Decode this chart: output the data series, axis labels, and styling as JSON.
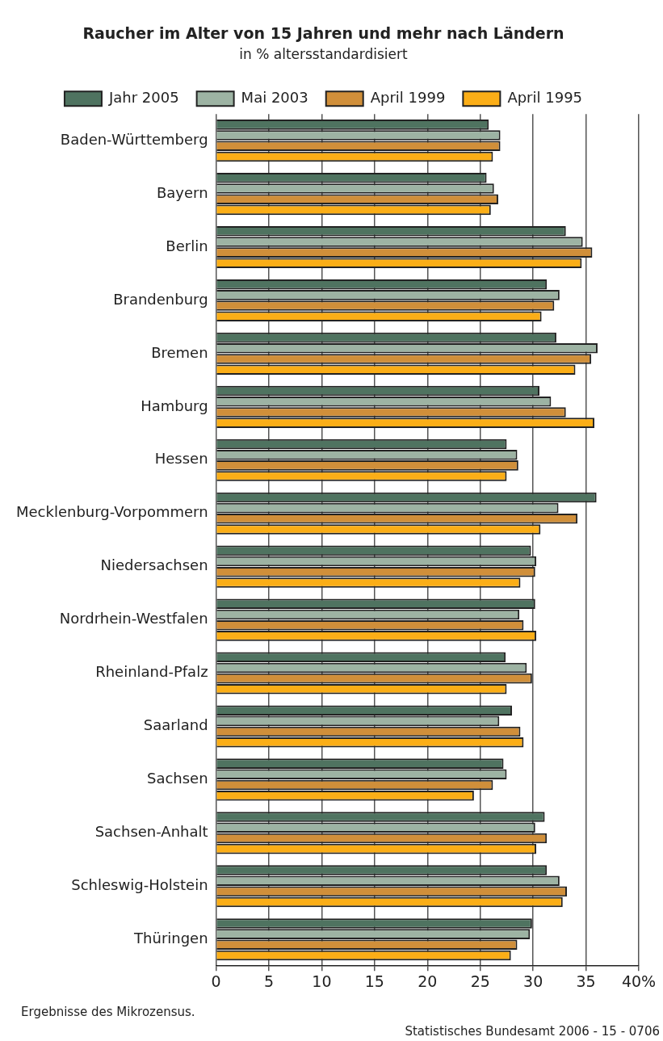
{
  "chart_data": {
    "type": "bar",
    "orientation": "horizontal",
    "title": "Raucher im Alter von 15 Jahren und mehr nach Ländern",
    "subtitle": "in % altersstandardisiert",
    "categories": [
      "Baden-Württemberg",
      "Bayern",
      "Berlin",
      "Brandenburg",
      "Bremen",
      "Hamburg",
      "Hessen",
      "Mecklenburg-Vorpommern",
      "Niedersachsen",
      "Nordrhein-Westfalen",
      "Rheinland-Pfalz",
      "Saarland",
      "Sachsen",
      "Sachsen-Anhalt",
      "Schleswig-Holstein",
      "Thüringen"
    ],
    "series": [
      {
        "name": "Jahr 2005",
        "color": "#4f7360",
        "values": [
          25.8,
          25.6,
          33.1,
          31.3,
          32.2,
          30.6,
          27.5,
          36.0,
          29.8,
          30.2,
          27.4,
          28.0,
          27.2,
          31.1,
          31.3,
          29.9
        ]
      },
      {
        "name": "Mai 2003",
        "color": "#9db3a3",
        "values": [
          26.9,
          26.3,
          34.7,
          32.5,
          36.1,
          31.7,
          28.5,
          32.4,
          30.3,
          28.7,
          29.4,
          26.8,
          27.5,
          30.2,
          32.5,
          29.7
        ]
      },
      {
        "name": "April 1999",
        "color": "#d08f3a",
        "values": [
          26.9,
          26.7,
          35.6,
          32.0,
          35.5,
          33.1,
          28.6,
          34.2,
          30.2,
          29.1,
          29.9,
          28.8,
          26.2,
          31.3,
          33.2,
          28.5
        ]
      },
      {
        "name": "April 1995",
        "color": "#fbae17",
        "values": [
          26.2,
          26.0,
          34.6,
          30.8,
          34.0,
          35.8,
          27.5,
          30.7,
          28.8,
          30.3,
          27.5,
          29.1,
          24.4,
          30.3,
          32.8,
          27.9
        ]
      }
    ],
    "xlim": [
      0,
      40
    ],
    "xticks": [
      0,
      5,
      10,
      15,
      20,
      25,
      30,
      35,
      {
        "value": 40,
        "label": "40%"
      }
    ],
    "grid": "x",
    "legend": "top",
    "annotations": [
      "Ergebnisse des Mikrozensus.",
      "Statistisches Bundesamt 2006 - 15 - 0706"
    ]
  }
}
